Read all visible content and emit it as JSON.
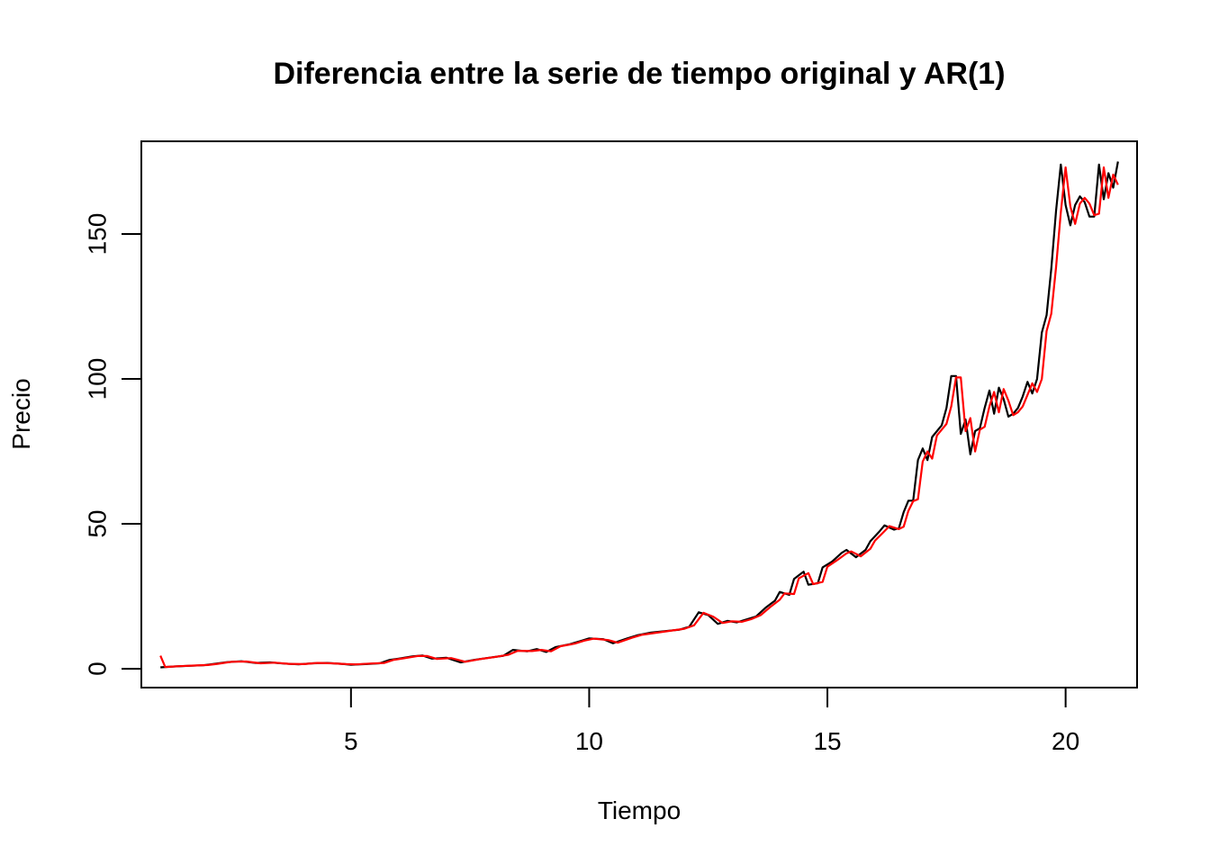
{
  "chart_data": {
    "type": "line",
    "title": "Diferencia entre la serie de tiempo original y AR(1)",
    "xlabel": "Tiempo",
    "ylabel": "Precio",
    "xlim": [
      0.6,
      21.5
    ],
    "ylim": [
      -6.5,
      182
    ],
    "x_ticks": [
      5,
      10,
      15,
      20
    ],
    "y_ticks": [
      0,
      50,
      100,
      150
    ],
    "grid": false,
    "legend": "none",
    "series": [
      {
        "color": "#000000",
        "points": [
          [
            1.0,
            0.5
          ],
          [
            1.3,
            0.8
          ],
          [
            1.6,
            1.0
          ],
          [
            1.9,
            1.2
          ],
          [
            2.1,
            1.6
          ],
          [
            2.4,
            2.3
          ],
          [
            2.7,
            2.6
          ],
          [
            3.0,
            2.0
          ],
          [
            3.3,
            2.2
          ],
          [
            3.6,
            1.8
          ],
          [
            3.9,
            1.5
          ],
          [
            4.2,
            1.9
          ],
          [
            4.5,
            2.0
          ],
          [
            4.8,
            1.7
          ],
          [
            5.0,
            1.4
          ],
          [
            5.3,
            1.6
          ],
          [
            5.6,
            1.9
          ],
          [
            5.8,
            3.0
          ],
          [
            6.0,
            3.5
          ],
          [
            6.3,
            4.3
          ],
          [
            6.5,
            4.6
          ],
          [
            6.7,
            3.5
          ],
          [
            7.0,
            3.8
          ],
          [
            7.3,
            2.2
          ],
          [
            7.6,
            3.1
          ],
          [
            7.9,
            3.8
          ],
          [
            8.2,
            4.5
          ],
          [
            8.4,
            6.5
          ],
          [
            8.7,
            6.0
          ],
          [
            8.9,
            6.8
          ],
          [
            9.1,
            5.8
          ],
          [
            9.3,
            7.5
          ],
          [
            9.6,
            8.5
          ],
          [
            9.8,
            9.5
          ],
          [
            10.0,
            10.5
          ],
          [
            10.3,
            10.2
          ],
          [
            10.5,
            8.8
          ],
          [
            10.8,
            10.5
          ],
          [
            11.0,
            11.5
          ],
          [
            11.3,
            12.5
          ],
          [
            11.6,
            13.0
          ],
          [
            11.9,
            13.5
          ],
          [
            12.1,
            14.5
          ],
          [
            12.3,
            19.5
          ],
          [
            12.5,
            18.5
          ],
          [
            12.7,
            15.5
          ],
          [
            12.9,
            16.5
          ],
          [
            13.1,
            16.0
          ],
          [
            13.3,
            17.0
          ],
          [
            13.5,
            18.0
          ],
          [
            13.7,
            21.0
          ],
          [
            13.9,
            23.5
          ],
          [
            14.0,
            26.5
          ],
          [
            14.2,
            25.5
          ],
          [
            14.3,
            31.0
          ],
          [
            14.5,
            33.5
          ],
          [
            14.6,
            29.0
          ],
          [
            14.8,
            29.5
          ],
          [
            14.9,
            35.0
          ],
          [
            15.1,
            37.0
          ],
          [
            15.3,
            40.0
          ],
          [
            15.4,
            41.0
          ],
          [
            15.6,
            38.5
          ],
          [
            15.8,
            41.0
          ],
          [
            15.9,
            44.0
          ],
          [
            16.1,
            47.5
          ],
          [
            16.2,
            49.5
          ],
          [
            16.4,
            48.0
          ],
          [
            16.5,
            48.5
          ],
          [
            16.6,
            54.0
          ],
          [
            16.7,
            58.0
          ],
          [
            16.8,
            58.0
          ],
          [
            16.9,
            72.0
          ],
          [
            17.0,
            76.0
          ],
          [
            17.1,
            72.0
          ],
          [
            17.2,
            80.0
          ],
          [
            17.4,
            84.0
          ],
          [
            17.5,
            90.0
          ],
          [
            17.6,
            101.0
          ],
          [
            17.7,
            101.0
          ],
          [
            17.8,
            81.0
          ],
          [
            17.9,
            86.0
          ],
          [
            18.0,
            74.0
          ],
          [
            18.1,
            82.0
          ],
          [
            18.2,
            83.0
          ],
          [
            18.3,
            90.0
          ],
          [
            18.4,
            96.0
          ],
          [
            18.5,
            88.0
          ],
          [
            18.6,
            97.0
          ],
          [
            18.7,
            93.0
          ],
          [
            18.8,
            87.0
          ],
          [
            18.9,
            88.0
          ],
          [
            19.0,
            90.0
          ],
          [
            19.1,
            94.0
          ],
          [
            19.2,
            99.0
          ],
          [
            19.3,
            95.0
          ],
          [
            19.4,
            100.0
          ],
          [
            19.5,
            116.0
          ],
          [
            19.6,
            122.0
          ],
          [
            19.7,
            138.0
          ],
          [
            19.8,
            158.0
          ],
          [
            19.9,
            174.0
          ],
          [
            20.0,
            160.0
          ],
          [
            20.1,
            153.0
          ],
          [
            20.2,
            160.0
          ],
          [
            20.3,
            163.0
          ],
          [
            20.4,
            161.0
          ],
          [
            20.5,
            156.0
          ],
          [
            20.6,
            156.0
          ],
          [
            20.7,
            174.0
          ],
          [
            20.8,
            162.0
          ],
          [
            20.9,
            171.0
          ],
          [
            21.0,
            166.0
          ],
          [
            21.1,
            175.0
          ]
        ]
      },
      {
        "color": "#ff0000",
        "points": [
          [
            1.0,
            4.5
          ],
          [
            1.1,
            0.6
          ],
          [
            1.4,
            0.9
          ],
          [
            1.7,
            1.1
          ],
          [
            2.0,
            1.3
          ],
          [
            2.2,
            1.7
          ],
          [
            2.5,
            2.4
          ],
          [
            2.8,
            2.5
          ],
          [
            3.1,
            1.9
          ],
          [
            3.4,
            2.1
          ],
          [
            3.7,
            1.7
          ],
          [
            4.0,
            1.6
          ],
          [
            4.3,
            2.0
          ],
          [
            4.6,
            1.9
          ],
          [
            4.9,
            1.6
          ],
          [
            5.1,
            1.5
          ],
          [
            5.4,
            1.8
          ],
          [
            5.7,
            2.0
          ],
          [
            5.9,
            3.1
          ],
          [
            6.1,
            3.6
          ],
          [
            6.4,
            4.4
          ],
          [
            6.6,
            4.4
          ],
          [
            6.8,
            3.4
          ],
          [
            7.1,
            3.7
          ],
          [
            7.4,
            2.4
          ],
          [
            7.7,
            3.3
          ],
          [
            8.0,
            4.0
          ],
          [
            8.3,
            4.8
          ],
          [
            8.5,
            6.2
          ],
          [
            8.8,
            6.1
          ],
          [
            9.0,
            6.5
          ],
          [
            9.2,
            6.0
          ],
          [
            9.4,
            7.8
          ],
          [
            9.7,
            8.7
          ],
          [
            9.9,
            9.7
          ],
          [
            10.1,
            10.4
          ],
          [
            10.4,
            9.9
          ],
          [
            10.6,
            9.0
          ],
          [
            10.9,
            10.7
          ],
          [
            11.1,
            11.7
          ],
          [
            11.4,
            12.4
          ],
          [
            11.7,
            13.1
          ],
          [
            12.0,
            13.8
          ],
          [
            12.2,
            15.0
          ],
          [
            12.4,
            19.3
          ],
          [
            12.6,
            18.0
          ],
          [
            12.8,
            15.8
          ],
          [
            13.0,
            16.4
          ],
          [
            13.2,
            16.2
          ],
          [
            13.4,
            17.1
          ],
          [
            13.6,
            18.5
          ],
          [
            13.8,
            21.3
          ],
          [
            14.0,
            23.8
          ],
          [
            14.1,
            26.0
          ],
          [
            14.3,
            25.8
          ],
          [
            14.4,
            31.2
          ],
          [
            14.6,
            33.0
          ],
          [
            14.7,
            29.2
          ],
          [
            14.9,
            30.0
          ],
          [
            15.0,
            35.2
          ],
          [
            15.2,
            37.4
          ],
          [
            15.4,
            39.8
          ],
          [
            15.5,
            40.5
          ],
          [
            15.7,
            38.8
          ],
          [
            15.9,
            41.4
          ],
          [
            16.0,
            44.2
          ],
          [
            16.2,
            47.5
          ],
          [
            16.3,
            49.2
          ],
          [
            16.5,
            48.2
          ],
          [
            16.6,
            49.0
          ],
          [
            16.7,
            54.5
          ],
          [
            16.8,
            57.8
          ],
          [
            16.9,
            58.5
          ],
          [
            17.0,
            71.5
          ],
          [
            17.1,
            75.0
          ],
          [
            17.2,
            72.5
          ],
          [
            17.3,
            80.5
          ],
          [
            17.5,
            84.5
          ],
          [
            17.6,
            90.5
          ],
          [
            17.7,
            100.5
          ],
          [
            17.8,
            100.5
          ],
          [
            17.9,
            82.0
          ],
          [
            18.0,
            86.5
          ],
          [
            18.1,
            75.0
          ],
          [
            18.2,
            82.5
          ],
          [
            18.3,
            83.5
          ],
          [
            18.4,
            90.5
          ],
          [
            18.5,
            95.5
          ],
          [
            18.6,
            88.5
          ],
          [
            18.7,
            96.5
          ],
          [
            18.8,
            92.5
          ],
          [
            18.9,
            87.5
          ],
          [
            19.0,
            88.5
          ],
          [
            19.1,
            90.5
          ],
          [
            19.2,
            94.5
          ],
          [
            19.3,
            98.5
          ],
          [
            19.4,
            95.5
          ],
          [
            19.5,
            100.0
          ],
          [
            19.6,
            116.5
          ],
          [
            19.7,
            122.5
          ],
          [
            19.8,
            138.5
          ],
          [
            19.9,
            157.5
          ],
          [
            20.0,
            173.0
          ],
          [
            20.1,
            159.5
          ],
          [
            20.2,
            153.5
          ],
          [
            20.3,
            160.5
          ],
          [
            20.4,
            162.5
          ],
          [
            20.5,
            160.5
          ],
          [
            20.6,
            156.5
          ],
          [
            20.7,
            157.0
          ],
          [
            20.8,
            173.0
          ],
          [
            20.9,
            162.5
          ],
          [
            21.0,
            170.5
          ],
          [
            21.1,
            167.0
          ]
        ]
      }
    ]
  }
}
